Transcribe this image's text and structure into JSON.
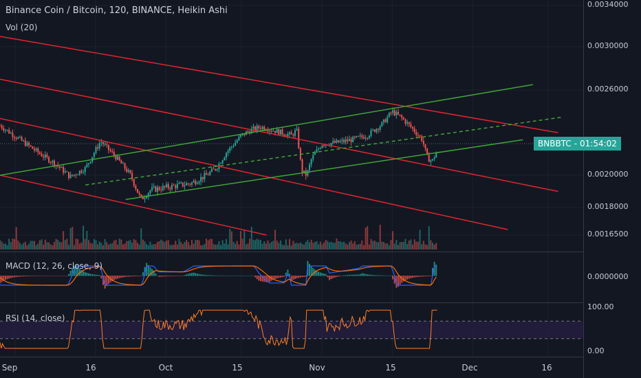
{
  "header": {
    "title": "Binance Coin / Bitcoin, 120, BINANCE, Heikin Ashi",
    "volume_label": "Vol (20)",
    "macd_label": "MACD (12, 26, close, 9)",
    "rsi_label": "RSI (14, close)"
  },
  "price_badge": {
    "symbol": "BNBBTC",
    "countdown": "01:54:02",
    "color": "#26a69a"
  },
  "colors": {
    "background": "#131722",
    "up_candle": "#26a69a",
    "down_candle": "#ef5350",
    "channel_red": "#e0262f",
    "channel_green": "#3fa535",
    "macd_line": "#2962ff",
    "signal_line": "#ff6d00",
    "rsi_line": "#ff7f27",
    "rsi_band": "#2a1f4a"
  },
  "chart_data": [
    {
      "type": "candlestick",
      "title": "Binance Coin / Bitcoin, 120, BINANCE, Heikin Ashi",
      "y_ticks": [
        "0.0034000",
        "0.0030000",
        "0.0026000",
        "0.0020000",
        "0.0018000",
        "0.0016500"
      ],
      "y_tick_values": [
        0.0034,
        0.003,
        0.0026,
        0.002,
        0.0018,
        0.00165
      ],
      "x_ticks": [
        "Sep",
        "16",
        "Oct",
        "15",
        "Nov",
        "15",
        "Dec",
        "16"
      ],
      "x_tick_days": [
        0,
        16,
        30,
        45,
        61,
        75,
        91,
        106
      ],
      "x_range_days": [
        -3,
        113
      ],
      "start_month": "Sep",
      "price_path": [
        [
          -3,
          0.00235
        ],
        [
          1,
          0.00225
        ],
        [
          5,
          0.00215
        ],
        [
          8,
          0.00208
        ],
        [
          11,
          0.00199
        ],
        [
          14,
          0.00205
        ],
        [
          17,
          0.00224
        ],
        [
          20,
          0.00213
        ],
        [
          23,
          0.002
        ],
        [
          25,
          0.00185
        ],
        [
          27,
          0.00191
        ],
        [
          31,
          0.00193
        ],
        [
          35,
          0.00195
        ],
        [
          38,
          0.002
        ],
        [
          40,
          0.00205
        ],
        [
          42,
          0.00216
        ],
        [
          45,
          0.00228
        ],
        [
          47,
          0.00232
        ],
        [
          49,
          0.00234
        ],
        [
          52,
          0.00231
        ],
        [
          55,
          0.00228
        ],
        [
          56,
          0.00232
        ],
        [
          57,
          0.00203
        ],
        [
          58,
          0.002
        ],
        [
          59,
          0.00212
        ],
        [
          61,
          0.00222
        ],
        [
          64,
          0.00223
        ],
        [
          67,
          0.00225
        ],
        [
          70,
          0.00228
        ],
        [
          73,
          0.00236
        ],
        [
          75,
          0.00245
        ],
        [
          77,
          0.0024
        ],
        [
          79,
          0.00233
        ],
        [
          81,
          0.00225
        ],
        [
          82,
          0.00212
        ],
        [
          83,
          0.0021
        ],
        [
          84,
          0.00218
        ]
      ],
      "last_price_label": "BNBBTC",
      "channels": [
        {
          "color": "red",
          "from": [
            -3,
            0.0031
          ],
          "to": [
            108,
            0.0023
          ]
        },
        {
          "color": "red",
          "from": [
            -3,
            0.0027
          ],
          "to": [
            108,
            0.0019
          ]
        },
        {
          "color": "red",
          "from": [
            -3,
            0.0024
          ],
          "to": [
            98,
            0.00168
          ]
        },
        {
          "color": "red",
          "from": [
            -3,
            0.002
          ],
          "to": [
            50,
            0.00165
          ]
        },
        {
          "color": "green",
          "from": [
            -3,
            0.002
          ],
          "to": [
            103,
            0.00265
          ]
        },
        {
          "color": "green",
          "from": [
            22,
            0.00185
          ],
          "to": [
            101,
            0.00225
          ]
        },
        {
          "color": "green-dashed",
          "from": [
            14,
            0.00194
          ],
          "to": [
            109,
            0.00241
          ]
        }
      ]
    },
    {
      "type": "bar",
      "title": "Vol (20)"
    },
    {
      "type": "line",
      "title": "MACD (12, 26, close, 9)",
      "y_ticks": [
        "0.0000000"
      ]
    },
    {
      "type": "line",
      "title": "RSI (14, close)",
      "y_ticks": [
        "100.00",
        "0.00"
      ],
      "bands": [
        30,
        70
      ]
    }
  ]
}
